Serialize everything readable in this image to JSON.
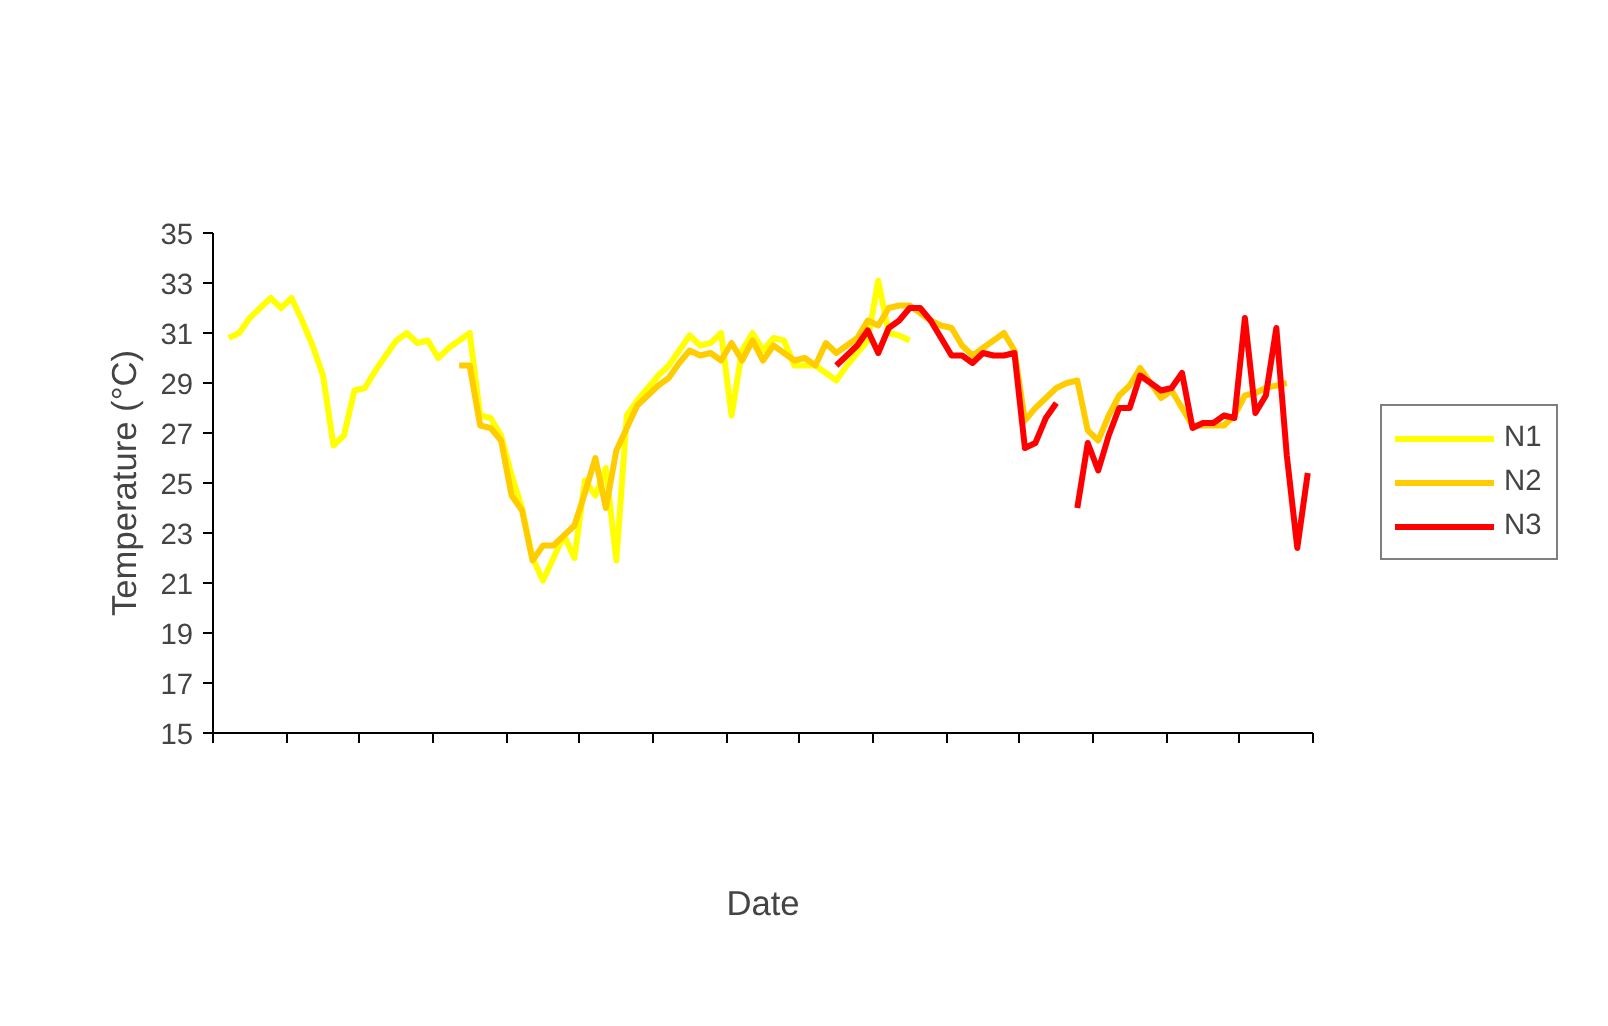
{
  "chart_data": {
    "type": "line",
    "xlabel": "Date",
    "ylabel": "Temperature (°C)",
    "ylim": [
      15,
      35
    ],
    "categories": [
      null,
      null,
      null,
      null,
      null,
      null,
      null,
      null,
      null,
      null,
      null,
      null,
      null,
      null,
      null,
      null,
      null,
      null,
      null,
      null,
      null,
      null,
      null,
      null,
      null,
      null,
      null,
      null,
      null,
      null,
      null,
      null,
      null,
      null,
      null,
      null,
      null,
      null,
      null,
      null,
      null,
      null,
      null,
      null,
      null,
      null,
      null,
      null,
      null,
      null,
      null,
      null,
      null,
      null,
      null,
      null,
      null,
      null,
      null,
      null,
      null,
      null,
      null,
      null,
      null,
      null,
      null,
      null,
      null,
      null,
      null,
      null,
      null,
      null,
      null,
      null,
      null,
      null,
      null,
      null,
      null,
      null,
      null,
      null,
      null,
      null,
      null,
      null,
      null,
      null,
      null,
      null,
      null,
      null,
      null,
      null,
      null,
      null,
      null,
      null,
      null,
      null,
      null,
      null,
      null
    ],
    "yticks": [
      15,
      17,
      19,
      21,
      23,
      25,
      27,
      29,
      31,
      33,
      35
    ],
    "legend": "right",
    "line_style": "solid",
    "series": [
      {
        "name": "N1",
        "color": "#ffff00",
        "values": [
          null,
          30.8,
          31.0,
          31.6,
          32.0,
          32.4,
          32.0,
          32.4,
          31.5,
          30.5,
          29.3,
          26.5,
          26.9,
          28.7,
          28.8,
          29.5,
          30.1,
          30.7,
          31.0,
          30.6,
          30.7,
          30.0,
          30.4,
          30.7,
          31.0,
          27.7,
          27.6,
          26.9,
          25.3,
          24.0,
          22.0,
          21.1,
          22.0,
          22.9,
          22.0,
          25.1,
          24.5,
          25.6,
          21.9,
          27.7,
          28.3,
          28.8,
          29.3,
          29.7,
          30.3,
          30.9,
          30.5,
          30.6,
          31.0,
          27.7,
          30.3,
          31.0,
          30.3,
          30.8,
          30.7,
          29.7,
          29.7,
          29.7,
          29.4,
          29.1,
          29.7,
          30.2,
          30.7,
          33.1,
          31.0,
          30.9,
          30.7,
          null,
          null,
          null,
          null,
          null,
          null,
          null,
          null,
          null,
          null,
          null,
          null,
          null,
          null,
          null,
          null,
          null,
          null,
          null,
          null,
          null,
          null,
          null,
          null,
          null,
          null,
          null,
          null,
          null,
          null,
          null,
          null,
          null,
          null,
          null,
          null,
          null,
          null
        ]
      },
      {
        "name": "N2",
        "color": "#ffcc00",
        "values": [
          null,
          null,
          null,
          null,
          null,
          null,
          null,
          null,
          null,
          null,
          null,
          null,
          null,
          null,
          null,
          null,
          null,
          null,
          null,
          null,
          null,
          null,
          null,
          29.7,
          29.7,
          27.3,
          27.2,
          26.7,
          24.5,
          23.9,
          21.9,
          22.5,
          22.5,
          22.9,
          23.3,
          24.6,
          26.0,
          24.0,
          26.3,
          27.2,
          28.1,
          28.5,
          28.9,
          29.2,
          29.8,
          30.3,
          30.1,
          30.2,
          29.9,
          30.6,
          29.9,
          30.7,
          29.9,
          30.5,
          30.2,
          29.9,
          30.0,
          29.7,
          30.6,
          30.2,
          30.5,
          30.8,
          31.5,
          31.3,
          32.0,
          32.1,
          32.1,
          31.8,
          31.5,
          31.3,
          31.2,
          30.5,
          30.1,
          30.4,
          30.7,
          31.0,
          30.3,
          27.5,
          28.0,
          28.4,
          28.8,
          29.0,
          29.1,
          27.1,
          26.7,
          27.7,
          28.5,
          28.9,
          29.6,
          29.0,
          28.4,
          28.7,
          28.0,
          27.3,
          27.3,
          27.3,
          27.3,
          27.7,
          28.5,
          28.6,
          28.8,
          28.9,
          29.0,
          null,
          null
        ]
      },
      {
        "name": "N3",
        "color": "#ff0000",
        "values": [
          null,
          null,
          null,
          null,
          null,
          null,
          null,
          null,
          null,
          null,
          null,
          null,
          null,
          null,
          null,
          null,
          null,
          null,
          null,
          null,
          null,
          null,
          null,
          null,
          null,
          null,
          null,
          null,
          null,
          null,
          null,
          null,
          null,
          null,
          null,
          null,
          null,
          null,
          null,
          null,
          null,
          null,
          null,
          null,
          null,
          null,
          null,
          null,
          null,
          null,
          null,
          null,
          null,
          null,
          null,
          null,
          null,
          null,
          null,
          29.7,
          30.1,
          30.5,
          31.1,
          30.2,
          31.2,
          31.5,
          32.0,
          32.0,
          31.5,
          30.8,
          30.1,
          30.1,
          29.8,
          30.2,
          30.1,
          30.1,
          30.2,
          26.4,
          26.6,
          27.6,
          28.2,
          null,
          24.0,
          26.6,
          25.5,
          26.9,
          28.0,
          28.0,
          29.3,
          29.0,
          28.7,
          28.8,
          29.4,
          27.2,
          27.4,
          27.4,
          27.7,
          27.6,
          31.6,
          27.8,
          28.5,
          31.2,
          26.1,
          22.4,
          25.4
        ]
      }
    ]
  }
}
